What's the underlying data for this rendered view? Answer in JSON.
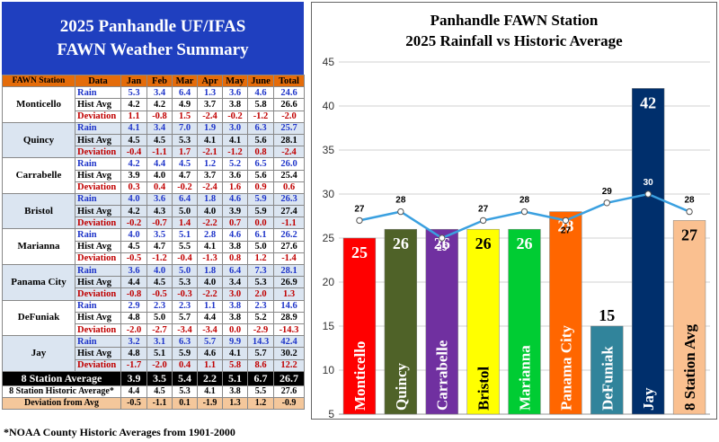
{
  "table": {
    "title_line1": "2025 Panhandle UF/IFAS",
    "title_line2": "FAWN Weather Summary",
    "headers": [
      "FAWN Station",
      "Data",
      "Jan",
      "Feb",
      "Mar",
      "Apr",
      "May",
      "June",
      "Total"
    ],
    "row_labels": {
      "rain": "Rain",
      "hist": "Hist Avg",
      "dev": "Deviation"
    },
    "stations": [
      {
        "name": "Monticello",
        "rain": [
          "5.3",
          "3.4",
          "6.4",
          "1.3",
          "3.6",
          "4.6",
          "24.6"
        ],
        "hist": [
          "4.2",
          "4.2",
          "4.9",
          "3.7",
          "3.8",
          "5.8",
          "26.6"
        ],
        "dev": [
          "1.1",
          "-0.8",
          "1.5",
          "-2.4",
          "-0.2",
          "-1.2",
          "-2.0"
        ]
      },
      {
        "name": "Quincy",
        "rain": [
          "4.1",
          "3.4",
          "7.0",
          "1.9",
          "3.0",
          "6.3",
          "25.7"
        ],
        "hist": [
          "4.5",
          "4.5",
          "5.3",
          "4.1",
          "4.1",
          "5.6",
          "28.1"
        ],
        "dev": [
          "-0.4",
          "-1.1",
          "1.7",
          "-2.1",
          "-1.2",
          "0.8",
          "-2.4"
        ]
      },
      {
        "name": "Carrabelle",
        "rain": [
          "4.2",
          "4.4",
          "4.5",
          "1.2",
          "5.2",
          "6.5",
          "26.0"
        ],
        "hist": [
          "3.9",
          "4.0",
          "4.7",
          "3.7",
          "3.6",
          "5.6",
          "25.4"
        ],
        "dev": [
          "0.3",
          "0.4",
          "-0.2",
          "-2.4",
          "1.6",
          "0.9",
          "0.6"
        ]
      },
      {
        "name": "Bristol",
        "rain": [
          "4.0",
          "3.6",
          "6.4",
          "1.8",
          "4.6",
          "5.9",
          "26.3"
        ],
        "hist": [
          "4.2",
          "4.3",
          "5.0",
          "4.0",
          "3.9",
          "5.9",
          "27.4"
        ],
        "dev": [
          "-0.2",
          "-0.7",
          "1.4",
          "-2.2",
          "0.7",
          "0.0",
          "-1.1"
        ]
      },
      {
        "name": "Marianna",
        "rain": [
          "4.0",
          "3.5",
          "5.1",
          "2.8",
          "4.6",
          "6.1",
          "26.2"
        ],
        "hist": [
          "4.5",
          "4.7",
          "5.5",
          "4.1",
          "3.8",
          "5.0",
          "27.6"
        ],
        "dev": [
          "-0.5",
          "-1.2",
          "-0.4",
          "-1.3",
          "0.8",
          "1.2",
          "-1.4"
        ]
      },
      {
        "name": "Panama City",
        "rain": [
          "3.6",
          "4.0",
          "5.0",
          "1.8",
          "6.4",
          "7.3",
          "28.1"
        ],
        "hist": [
          "4.4",
          "4.5",
          "5.3",
          "4.0",
          "3.4",
          "5.3",
          "26.9"
        ],
        "dev": [
          "-0.8",
          "-0.5",
          "-0.3",
          "-2.2",
          "3.0",
          "2.0",
          "1.3"
        ]
      },
      {
        "name": "DeFuniak",
        "rain": [
          "2.9",
          "2.3",
          "2.3",
          "1.1",
          "3.8",
          "2.3",
          "14.6"
        ],
        "hist": [
          "4.8",
          "5.0",
          "5.7",
          "4.4",
          "3.8",
          "5.2",
          "28.9"
        ],
        "dev": [
          "-2.0",
          "-2.7",
          "-3.4",
          "-3.4",
          "0.0",
          "-2.9",
          "-14.3"
        ]
      },
      {
        "name": "Jay",
        "rain": [
          "3.2",
          "3.1",
          "6.3",
          "5.7",
          "9.9",
          "14.3",
          "42.4"
        ],
        "hist": [
          "4.8",
          "5.1",
          "5.9",
          "4.6",
          "4.1",
          "5.7",
          "30.2"
        ],
        "dev": [
          "-1.7",
          "-2.0",
          "0.4",
          "1.1",
          "5.8",
          "8.6",
          "12.2"
        ]
      }
    ],
    "summary": {
      "avg_label": "8 Station Average",
      "avg": [
        "3.9",
        "3.5",
        "5.4",
        "2.2",
        "5.1",
        "6.7",
        "26.7"
      ],
      "hist_label": "8 Station Historic Average*",
      "hist": [
        "4.4",
        "4.5",
        "5.3",
        "4.1",
        "3.8",
        "5.5",
        "27.6"
      ],
      "dev_label": "Deviation from Avg",
      "dev": [
        "-0.5",
        "-1.1",
        "0.1",
        "-1.9",
        "1.3",
        "1.2",
        "-0.9"
      ]
    }
  },
  "footnote": "*NOAA County Historic Averages from 1901-2000",
  "chart_data": {
    "type": "bar",
    "title": "Panhandle FAWN Station",
    "subtitle": "2025 Rainfall vs Historic Average",
    "categories": [
      "Monticello",
      "Quincy",
      "Carrabelle",
      "Bristol",
      "Marianna",
      "Panama City",
      "DeFuniak",
      "Jay",
      "8 Station Avg"
    ],
    "values": [
      25,
      26,
      26,
      26,
      26,
      28,
      15,
      42,
      27
    ],
    "value_labels": [
      "25",
      "26",
      "26",
      "26",
      "26",
      "28",
      "15",
      "42",
      "27"
    ],
    "bar_colors": [
      "#ff0000",
      "#4f6228",
      "#7030a0",
      "#ffff00",
      "#00cc33",
      "#ff6600",
      "#31849b",
      "#002f6c",
      "#fac090"
    ],
    "line_values": [
      27,
      28,
      25,
      27,
      28,
      27,
      29,
      30,
      28
    ],
    "line_labels": [
      "27",
      "28",
      "25",
      "27",
      "28",
      "27",
      "29",
      "30",
      "28"
    ],
    "line_color": "#3aa0e0",
    "yticks": [
      "5",
      "10",
      "15",
      "20",
      "25",
      "30",
      "35",
      "40",
      "45"
    ],
    "ylim": [
      5,
      45
    ],
    "grid": true
  }
}
